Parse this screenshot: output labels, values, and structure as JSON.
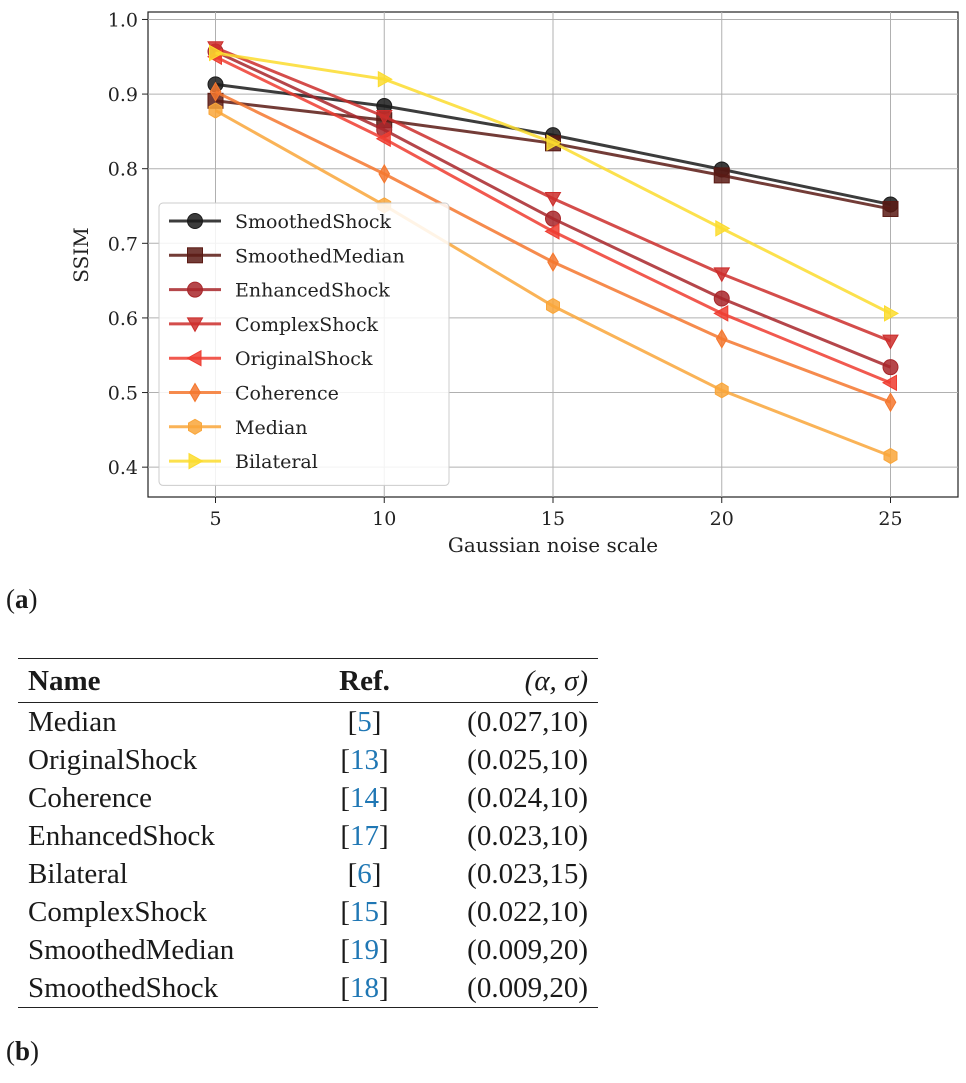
{
  "chart_data": {
    "type": "line",
    "xlabel": "Gaussian noise scale",
    "ylabel": "SSIM",
    "x": [
      5,
      10,
      15,
      20,
      25
    ],
    "xticks": [
      "5",
      "10",
      "15",
      "20",
      "25"
    ],
    "xlim": [
      3,
      27
    ],
    "yticks": [
      "0.4",
      "0.5",
      "0.6",
      "0.7",
      "0.8",
      "0.9",
      "1.0"
    ],
    "ylim": [
      0.36,
      1.01
    ],
    "grid": true,
    "legend_position": "lower-left",
    "series": [
      {
        "name": "SmoothedShock",
        "values": [
          0.913,
          0.884,
          0.845,
          0.799,
          0.752
        ],
        "color": "#1a1a1a",
        "marker": "circle"
      },
      {
        "name": "SmoothedMedian",
        "values": [
          0.891,
          0.865,
          0.834,
          0.791,
          0.746
        ],
        "color": "#5a1a14",
        "marker": "square"
      },
      {
        "name": "EnhancedShock",
        "values": [
          0.957,
          0.852,
          0.733,
          0.626,
          0.534
        ],
        "color": "#a8262a",
        "marker": "circle"
      },
      {
        "name": "ComplexShock",
        "values": [
          0.962,
          0.87,
          0.76,
          0.659,
          0.569
        ],
        "color": "#cc2e2c",
        "marker": "triangle-down"
      },
      {
        "name": "OriginalShock",
        "values": [
          0.95,
          0.84,
          0.716,
          0.606,
          0.513
        ],
        "color": "#ee3c30",
        "marker": "triangle-left"
      },
      {
        "name": "Coherence",
        "values": [
          0.903,
          0.793,
          0.675,
          0.572,
          0.487
        ],
        "color": "#f4772e",
        "marker": "diamond"
      },
      {
        "name": "Median",
        "values": [
          0.878,
          0.751,
          0.616,
          0.503,
          0.415
        ],
        "color": "#f9a63a",
        "marker": "hexagon"
      },
      {
        "name": "Bilateral",
        "values": [
          0.955,
          0.92,
          0.835,
          0.72,
          0.606
        ],
        "color": "#fcdc2e",
        "marker": "triangle-right"
      }
    ]
  },
  "caption_a": "a",
  "caption_b": "b",
  "table": {
    "headers": {
      "name": "Name",
      "ref": "Ref.",
      "params": "(α, σ)"
    },
    "rows": [
      {
        "name": "Median",
        "ref": "5",
        "params": "(0.027,10)"
      },
      {
        "name": "OriginalShock",
        "ref": "13",
        "params": "(0.025,10)"
      },
      {
        "name": "Coherence",
        "ref": "14",
        "params": "(0.024,10)"
      },
      {
        "name": "EnhancedShock",
        "ref": "17",
        "params": "(0.023,10)"
      },
      {
        "name": "Bilateral",
        "ref": "6",
        "params": "(0.023,15)"
      },
      {
        "name": "ComplexShock",
        "ref": "15",
        "params": "(0.022,10)"
      },
      {
        "name": "SmoothedMedian",
        "ref": "19",
        "params": "(0.009,20)"
      },
      {
        "name": "SmoothedShock",
        "ref": "18",
        "params": "(0.009,20)"
      }
    ]
  }
}
